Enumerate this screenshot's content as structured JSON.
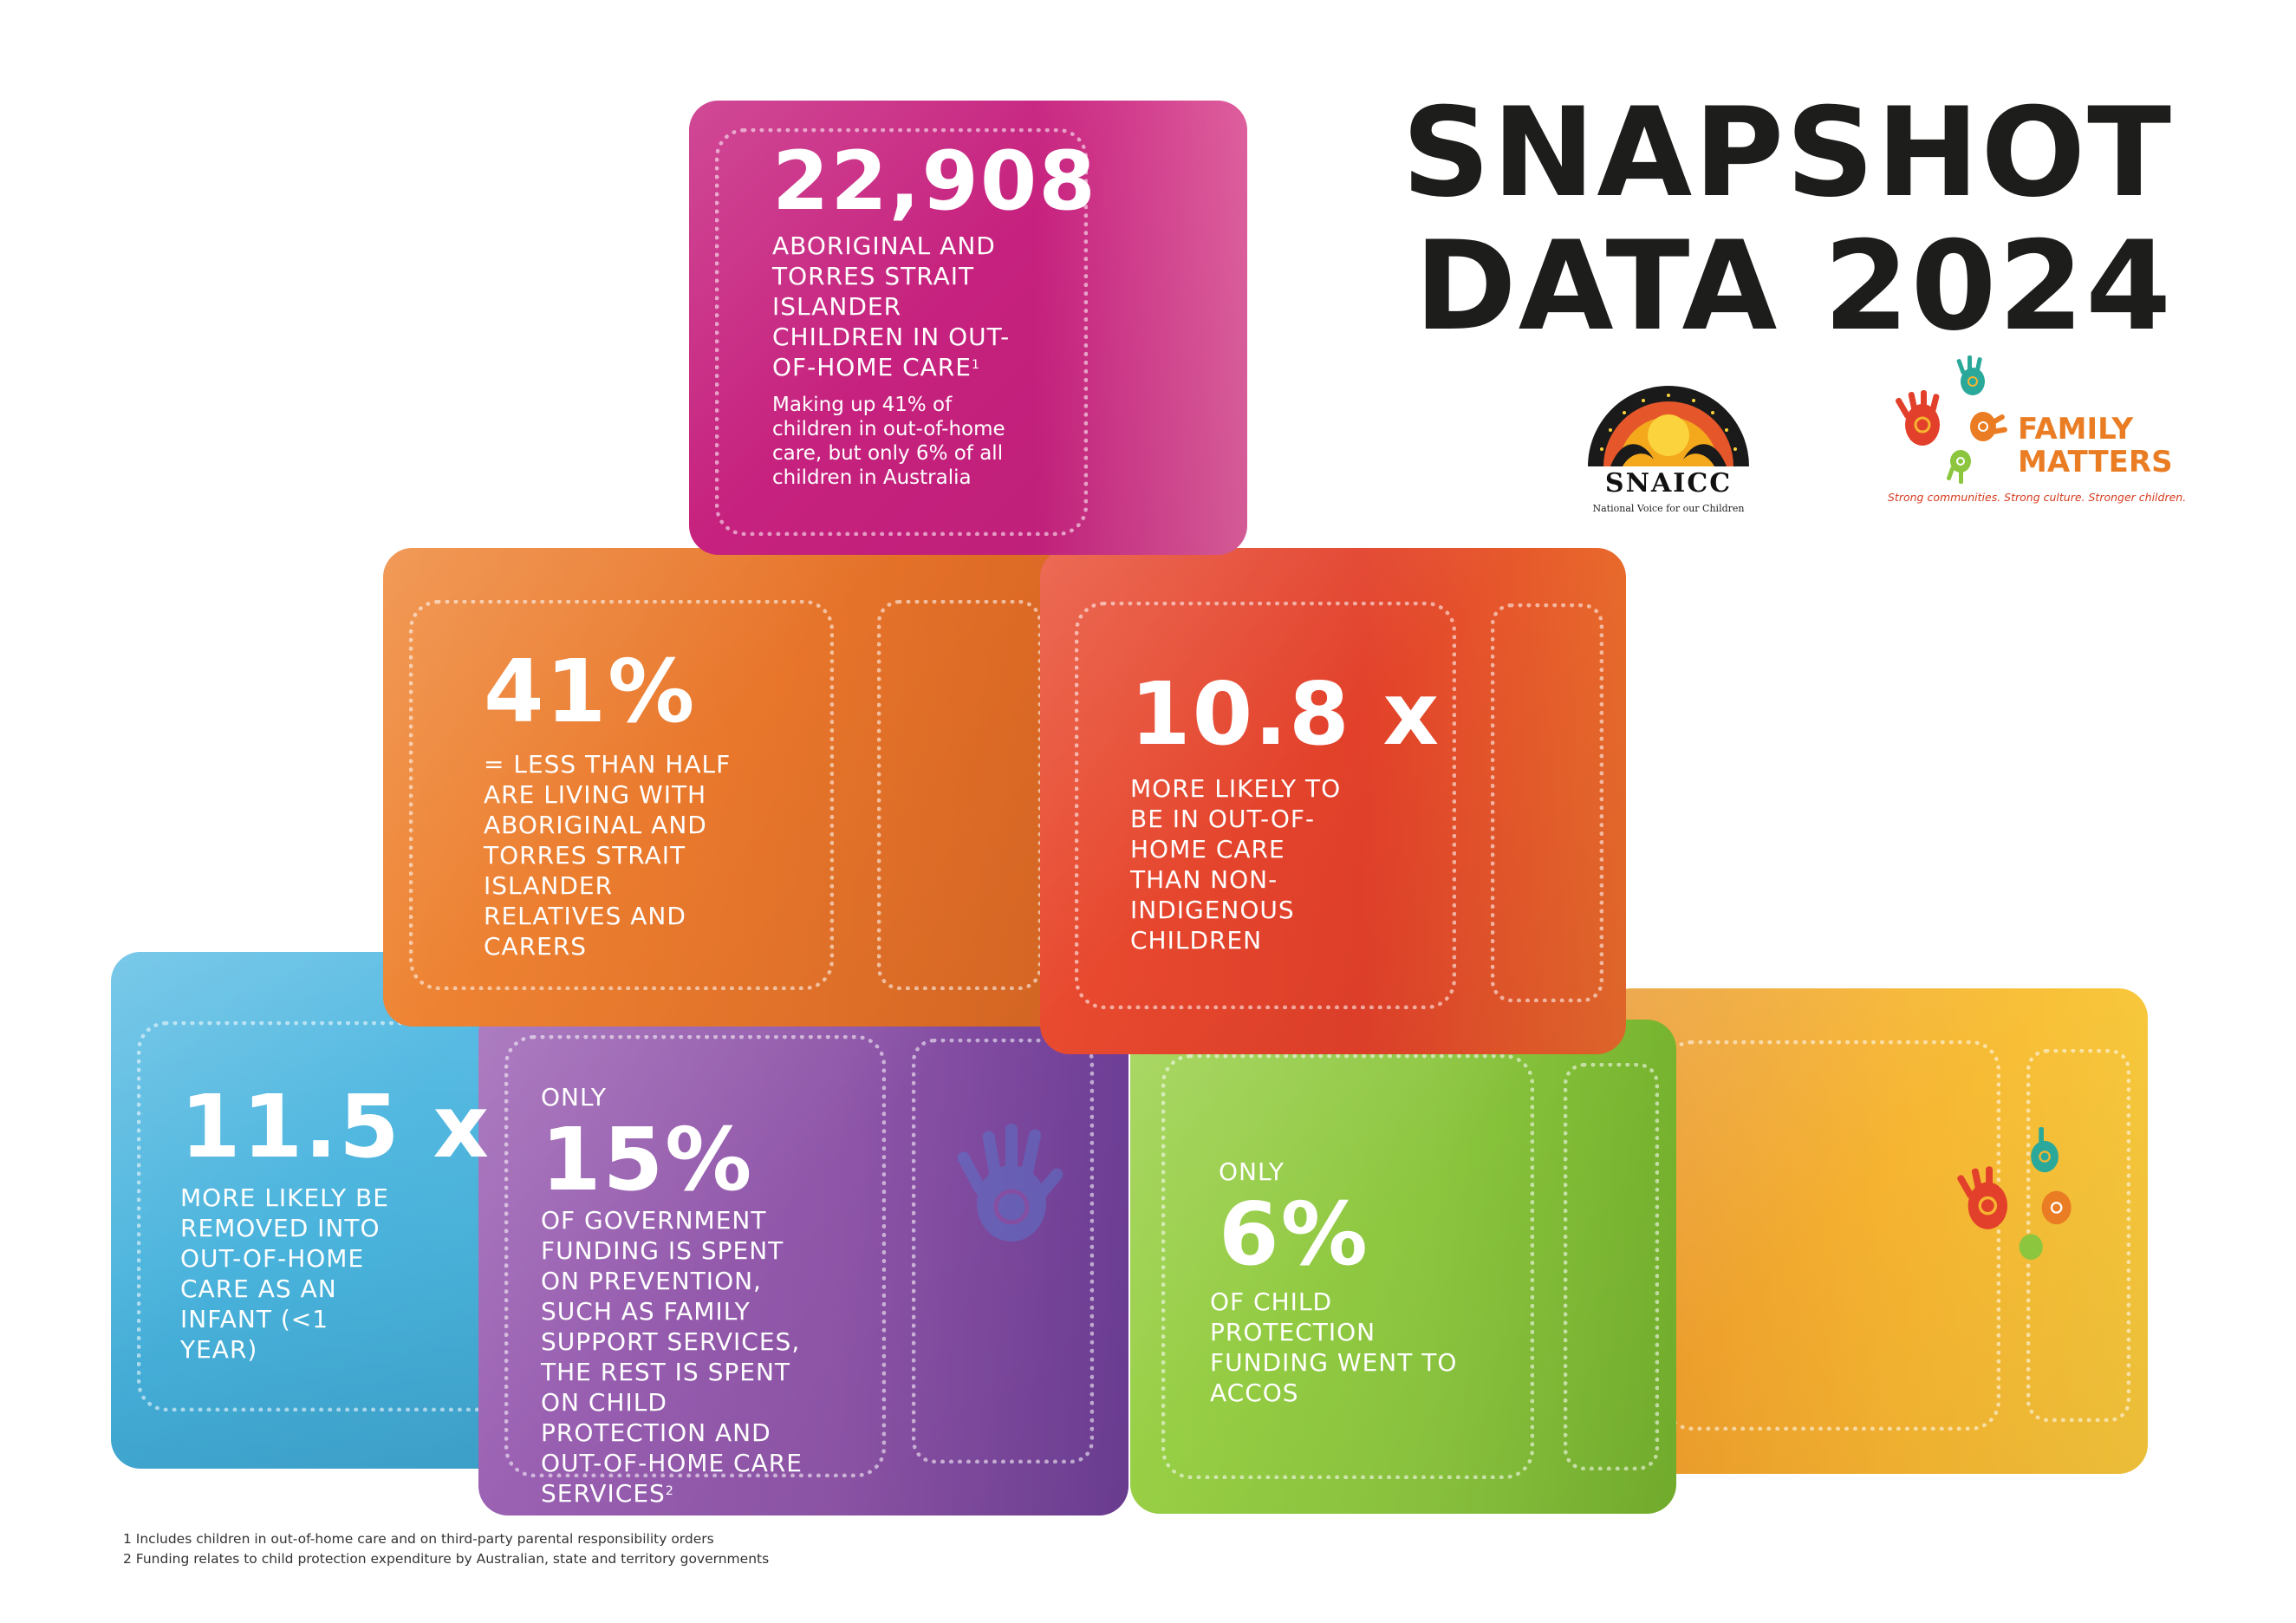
{
  "title": {
    "line1": "SNAPSHOT",
    "line2": "DATA 2024"
  },
  "logos": {
    "snaicc": {
      "name": "SNAICC",
      "tagline": "National Voice for our Children"
    },
    "family_matters": {
      "word1": "FAMILY",
      "word2": "MATTERS",
      "tagline": "Strong communities. Strong culture. Stronger children."
    }
  },
  "blocks": {
    "magenta": {
      "stat": "22,908",
      "text": "ABORIGINAL AND TORRES STRAIT ISLANDER CHILDREN IN OUT-OF-HOME CARE",
      "sup": "1",
      "note": "Making up 41% of children in out-of-home care, but only 6% of all children in Australia",
      "color": "#c6217e"
    },
    "orange": {
      "stat": "41%",
      "text": "= LESS THAN HALF ARE LIVING WITH ABORIGINAL AND TORRES STRAIT ISLANDER RELATIVES AND CARERS",
      "color": "#e8762b"
    },
    "red": {
      "stat": "10.8 x",
      "text": "MORE LIKELY TO BE IN OUT-OF-HOME CARE THAN NON-INDIGENOUS CHILDREN",
      "color": "#e2402a"
    },
    "blue": {
      "stat": "11.5 x",
      "text": "MORE LIKELY BE REMOVED INTO OUT-OF-HOME CARE AS AN INFANT (<1 YEAR)",
      "color": "#49b3dc"
    },
    "purple": {
      "prefix": "ONLY",
      "stat": "15%",
      "text": "OF GOVERNMENT FUNDING IS SPENT ON PREVENTION, SUCH AS FAMILY SUPPORT SERVICES, THE REST IS SPENT ON CHILD PROTECTION AND OUT-OF-HOME CARE SERVICES",
      "sup": "2",
      "color": "#8f55a8"
    },
    "green": {
      "prefix": "ONLY",
      "stat": "6%",
      "text": "OF CHILD PROTECTION FUNDING WENT TO ACCOS",
      "color": "#8cc63f"
    },
    "yellow": {
      "color": "#f6b531"
    }
  },
  "footnotes": [
    "1  Includes children in out-of-home care and on third-party parental responsibility orders",
    "2  Funding relates to child protection expenditure by Australian, state and territory governments"
  ]
}
